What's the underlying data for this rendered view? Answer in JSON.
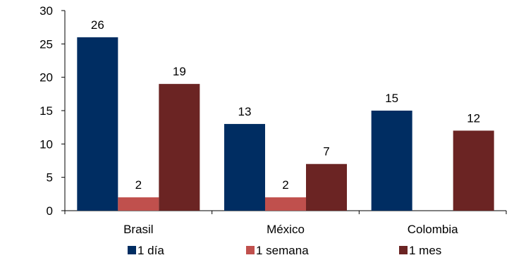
{
  "chart_data": {
    "type": "bar",
    "categories": [
      "Brasil",
      "México",
      "Colombia"
    ],
    "series": [
      {
        "name": "1 día",
        "color": "#002D62",
        "values": [
          26,
          13,
          15
        ]
      },
      {
        "name": "1 semana",
        "color": "#C0504D",
        "values": [
          2,
          2,
          null
        ]
      },
      {
        "name": "1 mes",
        "color": "#6B2423",
        "values": [
          19,
          7,
          12
        ]
      }
    ],
    "ylim": [
      0,
      30
    ],
    "yticks": [
      0,
      5,
      10,
      15,
      20,
      25,
      30
    ],
    "grid": false,
    "legend_position": "bottom",
    "title": "",
    "xlabel": "",
    "ylabel": ""
  }
}
